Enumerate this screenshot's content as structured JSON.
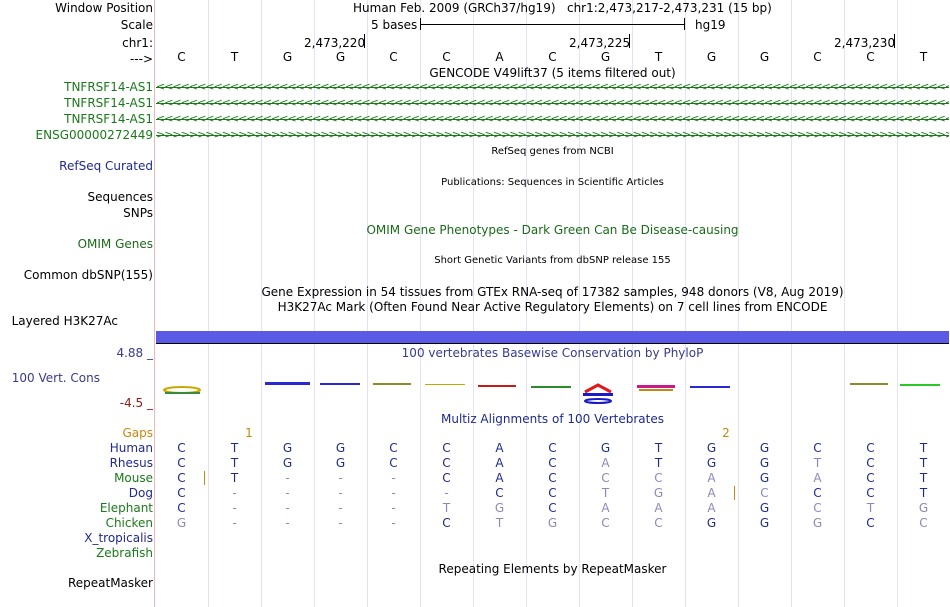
{
  "colors": {
    "gene": "#1a7a1a",
    "refseq": "#1f2a8c",
    "omim": "#1a6a1a",
    "gaps": "#c8860d",
    "phylo": "#3a3a8c",
    "h3k27": "#4b4bdc",
    "neg": "#8c1a1a"
  },
  "header": {
    "window_position_label": "Window Position",
    "assembly": "Human Feb. 2009 (GRCh37/hg19)",
    "position": "chr1:2,473,217-2,473,231 (15 bp)",
    "scale_label": "Scale",
    "scale_text": "5 bases",
    "scale_db": "hg19",
    "chrom_label": "chr1:",
    "arrow_label": "--->"
  },
  "ruler": {
    "ticks": [
      {
        "label": "2,473,220",
        "col": 3
      },
      {
        "label": "2,473,225",
        "col": 8
      },
      {
        "label": "2,473,230",
        "col": 13
      }
    ]
  },
  "bases": [
    "C",
    "T",
    "G",
    "G",
    "C",
    "C",
    "A",
    "C",
    "G",
    "T",
    "G",
    "G",
    "C",
    "C",
    "T"
  ],
  "tracks": {
    "gencode_title": "GENCODE V49lift37 (5 items filtered out)",
    "genes": [
      {
        "label": "TNFRSF14-AS1",
        "strand": "<"
      },
      {
        "label": "TNFRSF14-AS1",
        "strand": "<"
      },
      {
        "label": "TNFRSF14-AS1",
        "strand": "<"
      },
      {
        "label": "ENSG00000272449",
        "strand": ">"
      }
    ],
    "refseq_title": "RefSeq genes from NCBI",
    "refseq_label": "RefSeq Curated",
    "pubs_title": "Publications: Sequences in Scientific Articles",
    "sequences_label": "Sequences",
    "snps_label": "SNPs",
    "omim_title": "OMIM Gene Phenotypes - Dark Green Can Be Disease-causing",
    "omim_label": "OMIM Genes",
    "dbsnp_title": "Short Genetic Variants from dbSNP release 155",
    "dbsnp_label": "Common dbSNP(155)",
    "gtex_title": "Gene Expression in 54 tissues from GTEx RNA-seq of 17382 samples, 948 donors (V8, Aug 2019)",
    "h3k27_title": "H3K27Ac Mark (Often Found Near Active Regulatory Elements) on 7 cell lines from ENCODE",
    "h3k27_label": "Layered H3K27Ac",
    "phylo_title": "100 vertebrates Basewise Conservation by PhyloP",
    "phylo_label": "100 Vert. Cons",
    "phylo_max": "4.88 _",
    "phylo_min": "-4.5 _",
    "multiz_title": "Multiz Alignments of 100 Vertebrates",
    "gaps_label": "Gaps",
    "gap_marks": [
      {
        "text": "1",
        "col": 1.5
      },
      {
        "text": "2",
        "col": 10.5
      }
    ],
    "repeat_title": "Repeating Elements by RepeatMasker",
    "repeat_label": "RepeatMasker"
  },
  "alignments": [
    {
      "species": "Human",
      "color": "#1f2a8c",
      "seq": "CTGGCCACGTGGCCT",
      "faint": []
    },
    {
      "species": "Rhesus",
      "color": "#1f2a8c",
      "seq": "CTGGCCACATGGTCT",
      "faint": [
        8,
        12
      ]
    },
    {
      "species": "Mouse",
      "color": "#1a7a1a",
      "seq": "CT---CACCCAGACT",
      "faint": [
        8,
        9,
        10,
        12
      ]
    },
    {
      "species": "Dog",
      "color": "#1f2a8c",
      "seq": "C-----CCTGACCCT",
      "faint": [
        8,
        9,
        10,
        11
      ]
    },
    {
      "species": "Elephant",
      "color": "#1a7a1a",
      "seq": "C----TGCAAAGCTG",
      "faint": [
        5,
        6,
        8,
        9,
        10,
        12,
        13,
        14
      ]
    },
    {
      "species": "Chicken",
      "color": "#1a7a1a",
      "seq": "G----CTGCCGGGCC",
      "faint": [
        0,
        6,
        7,
        8,
        9,
        12,
        14
      ]
    },
    {
      "species": "X_tropicalis",
      "color": "#1f2a8c",
      "seq": "",
      "faint": []
    },
    {
      "species": "Zebrafish",
      "color": "#1a7a1a",
      "seq": "",
      "faint": []
    }
  ]
}
